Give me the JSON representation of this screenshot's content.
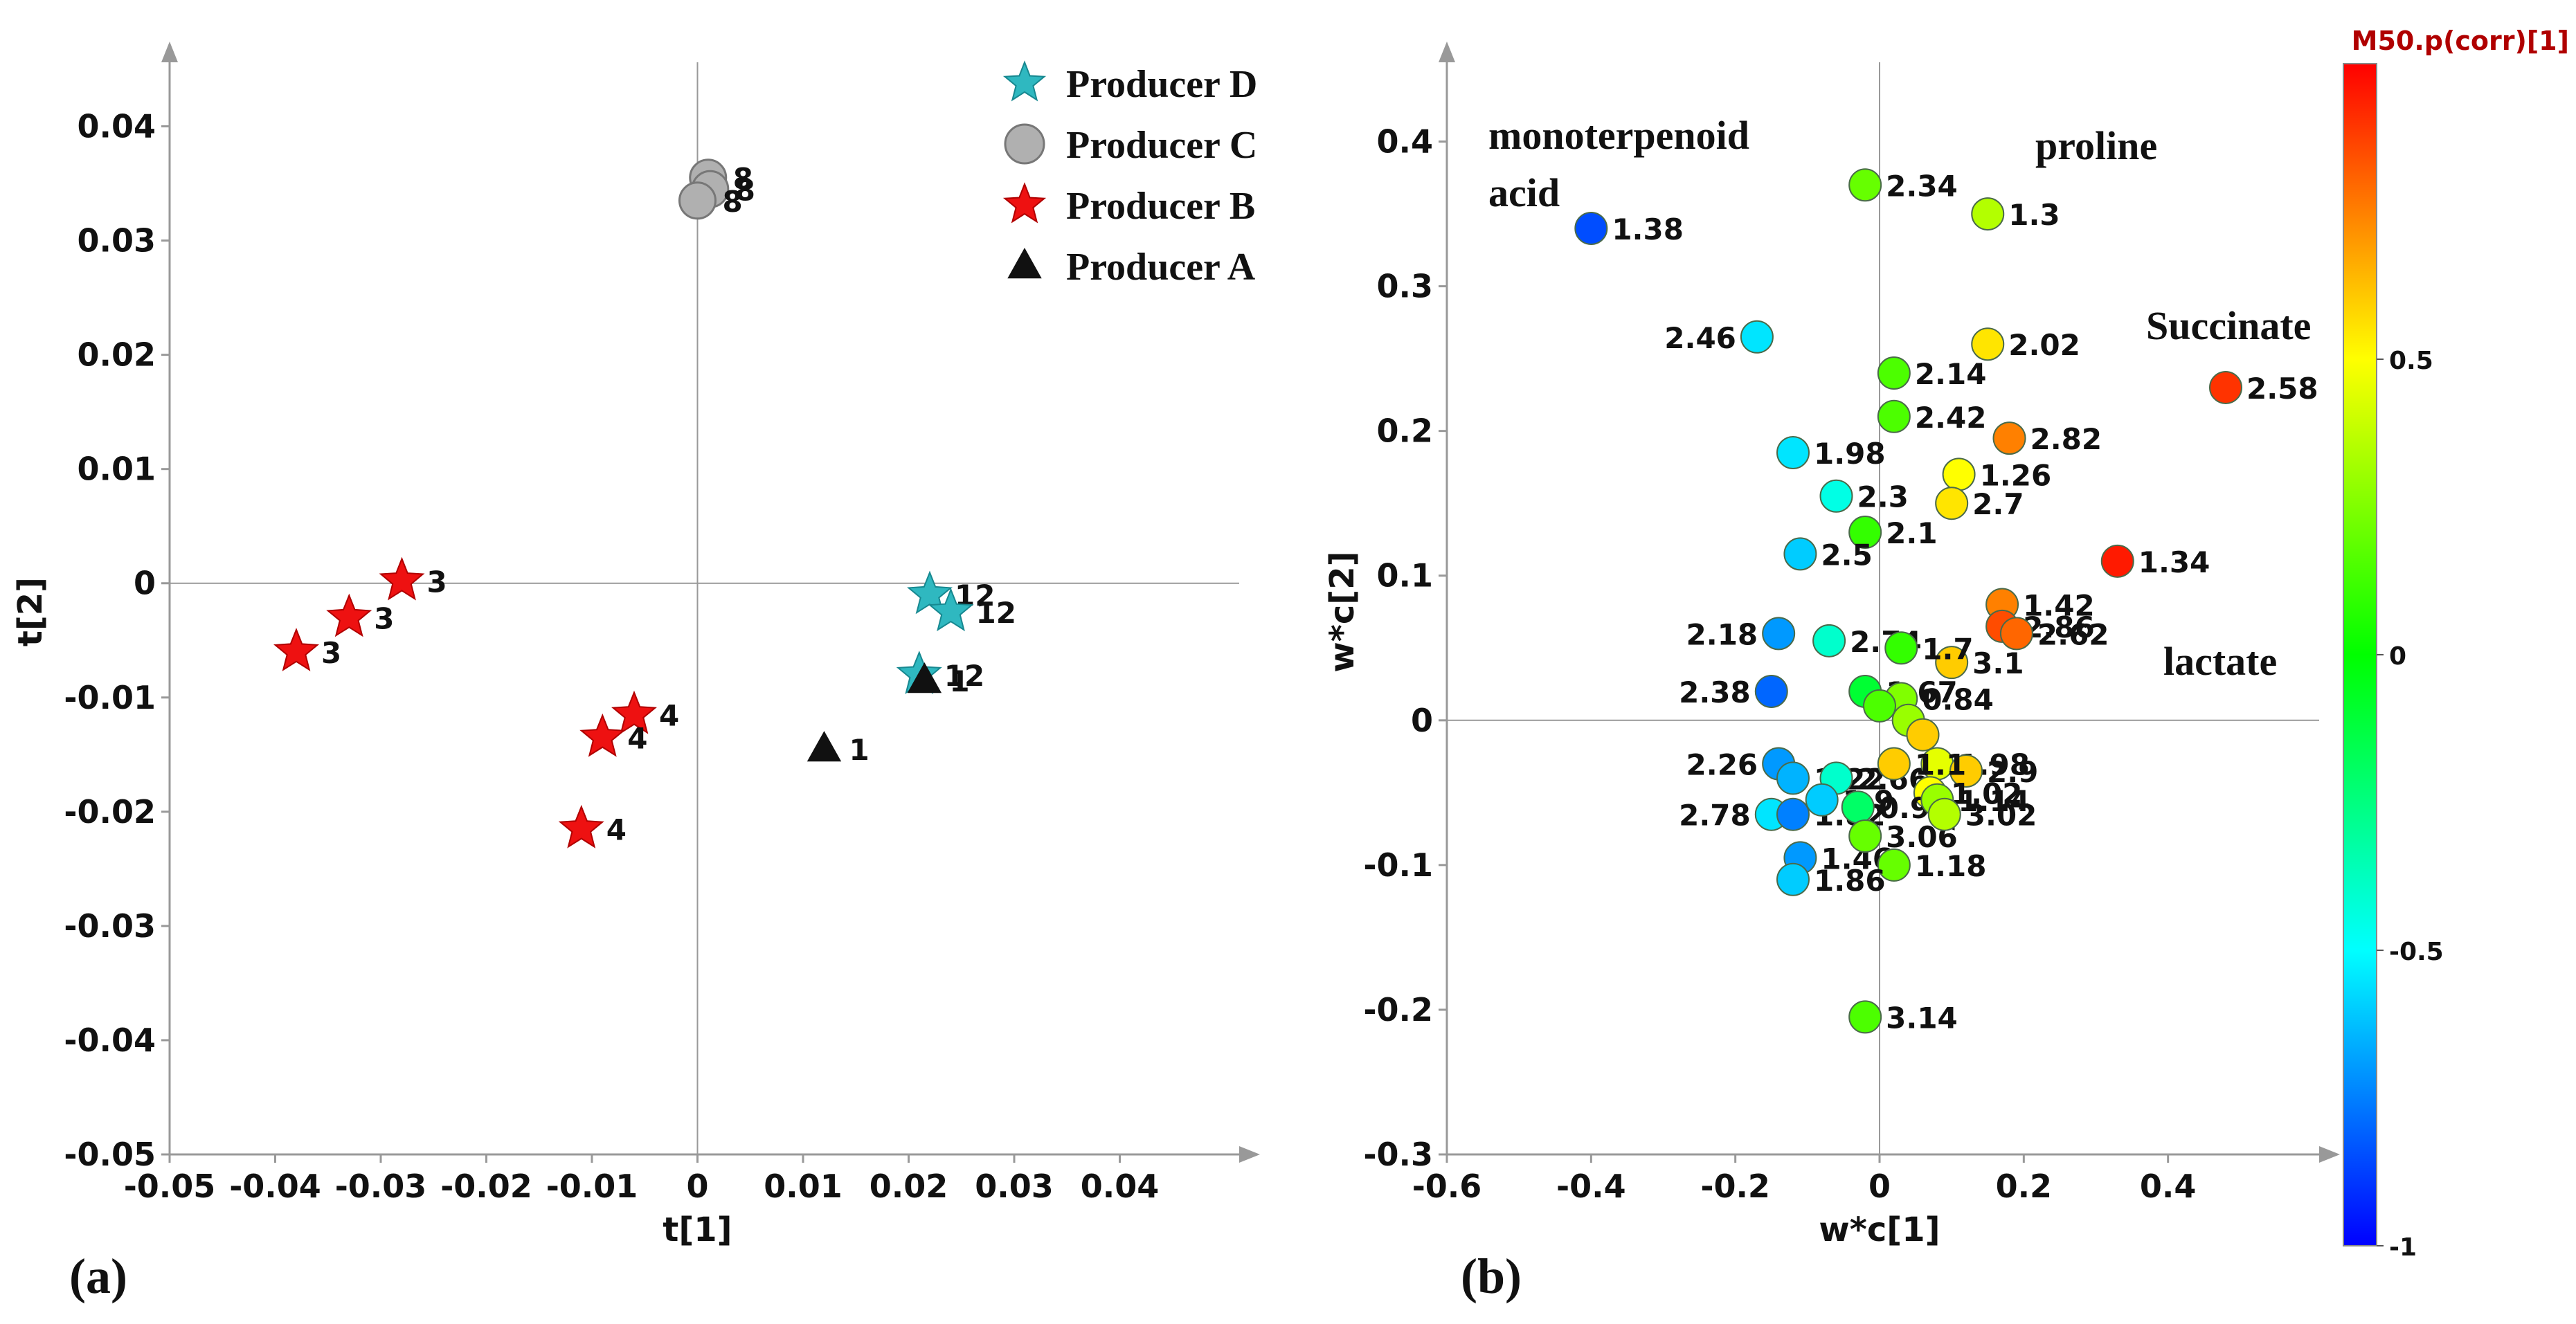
{
  "chart_data": [
    {
      "type": "scatter",
      "panel_label": "(a)",
      "xlabel": "t[1]",
      "ylabel": "t[2]",
      "xlim": [
        -0.05,
        0.05
      ],
      "ylim": [
        -0.05,
        0.045
      ],
      "x_ticks": [
        "-0.05",
        "-0.04",
        "-0.03",
        "-0.02",
        "-0.01",
        "0",
        "0.01",
        "0.02",
        "0.03",
        "0.04"
      ],
      "y_ticks": [
        "-0.05",
        "-0.04",
        "-0.03",
        "-0.02",
        "-0.01",
        "0",
        "0.01",
        "0.02",
        "0.03",
        "0.04"
      ],
      "legend_position": "top-right",
      "series": [
        {
          "name": "Producer D",
          "marker": "star",
          "color": "#2fb8c0",
          "points": [
            {
              "x": 0.022,
              "y": -0.001,
              "label": "12"
            },
            {
              "x": 0.024,
              "y": -0.0025,
              "label": "12"
            },
            {
              "x": 0.021,
              "y": -0.008,
              "label": "12"
            }
          ]
        },
        {
          "name": "Producer C",
          "marker": "circle",
          "color": "#b0b0b0",
          "points": [
            {
              "x": 0.001,
              "y": 0.0355,
              "label": "8"
            },
            {
              "x": 0.0012,
              "y": 0.0345,
              "label": "8"
            },
            {
              "x": 0.0,
              "y": 0.0335,
              "label": "8"
            }
          ]
        },
        {
          "name": "Producer B",
          "marker": "star",
          "color": "#ee1111",
          "points": [
            {
              "x": -0.028,
              "y": 0.0002,
              "label": "3"
            },
            {
              "x": -0.033,
              "y": -0.003,
              "label": "3"
            },
            {
              "x": -0.038,
              "y": -0.006,
              "label": "3"
            },
            {
              "x": -0.006,
              "y": -0.0115,
              "label": "4"
            },
            {
              "x": -0.009,
              "y": -0.0135,
              "label": "4"
            },
            {
              "x": -0.011,
              "y": -0.0215,
              "label": "4"
            }
          ]
        },
        {
          "name": "Producer A",
          "marker": "triangle",
          "color": "#111111",
          "points": [
            {
              "x": 0.0215,
              "y": -0.0085,
              "label": "1"
            },
            {
              "x": 0.012,
              "y": -0.0145,
              "label": "1"
            }
          ]
        }
      ]
    },
    {
      "type": "scatter",
      "panel_label": "(b)",
      "xlabel": "w*c[1]",
      "ylabel": "w*c[2]",
      "xlim": [
        -0.6,
        0.6
      ],
      "ylim": [
        -0.3,
        0.45
      ],
      "x_ticks": [
        "-0.6",
        "-0.4",
        "-0.2",
        "0",
        "0.2",
        "0.4"
      ],
      "y_ticks": [
        "-0.3",
        "-0.2",
        "-0.1",
        "0",
        "0.1",
        "0.2",
        "0.3",
        "0.4"
      ],
      "colorbar": {
        "title": "M50.p(corr)[1]",
        "min": -1,
        "max": 1,
        "ticks": [
          "0.5",
          "0",
          "-0.5",
          "-1"
        ]
      },
      "annotations": [
        "monoterpenoid",
        "acid",
        "proline",
        "Succinate",
        "lactate"
      ],
      "points": [
        {
          "x": -0.4,
          "y": 0.34,
          "c": -0.85,
          "label": "1.38"
        },
        {
          "x": -0.02,
          "y": 0.37,
          "c": 0.2,
          "label": "2.34"
        },
        {
          "x": 0.15,
          "y": 0.35,
          "c": 0.35,
          "label": "1.3"
        },
        {
          "x": -0.17,
          "y": 0.265,
          "c": -0.55,
          "label": "2.46"
        },
        {
          "x": 0.15,
          "y": 0.26,
          "c": 0.55,
          "label": "2.02"
        },
        {
          "x": 0.02,
          "y": 0.24,
          "c": 0.15,
          "label": "2.14"
        },
        {
          "x": 0.48,
          "y": 0.23,
          "c": 0.9,
          "label": "2.58"
        },
        {
          "x": 0.02,
          "y": 0.21,
          "c": 0.15,
          "label": "2.42"
        },
        {
          "x": 0.18,
          "y": 0.195,
          "c": 0.75,
          "label": "2.82"
        },
        {
          "x": -0.12,
          "y": 0.185,
          "c": -0.55,
          "label": "1.98"
        },
        {
          "x": 0.11,
          "y": 0.17,
          "c": 0.5,
          "label": "1.26"
        },
        {
          "x": -0.06,
          "y": 0.155,
          "c": -0.45,
          "label": "2.3"
        },
        {
          "x": 0.1,
          "y": 0.15,
          "c": 0.55,
          "label": "2.7"
        },
        {
          "x": -0.02,
          "y": 0.13,
          "c": 0.1,
          "label": "2.1"
        },
        {
          "x": -0.11,
          "y": 0.115,
          "c": -0.6,
          "label": "2.5"
        },
        {
          "x": 0.33,
          "y": 0.11,
          "c": 0.95,
          "label": "1.34"
        },
        {
          "x": 0.17,
          "y": 0.08,
          "c": 0.75,
          "label": "1.42"
        },
        {
          "x": 0.17,
          "y": 0.065,
          "c": 0.85,
          "label": "2.86"
        },
        {
          "x": 0.19,
          "y": 0.06,
          "c": 0.8,
          "label": "2.62"
        },
        {
          "x": 0.1,
          "y": 0.04,
          "c": 0.6,
          "label": "3.1"
        },
        {
          "x": -0.14,
          "y": 0.06,
          "c": -0.7,
          "label": "2.18"
        },
        {
          "x": -0.07,
          "y": 0.055,
          "c": -0.4,
          "label": "2.74"
        },
        {
          "x": 0.03,
          "y": 0.05,
          "c": 0.1,
          "label": "1.7"
        },
        {
          "x": -0.15,
          "y": 0.02,
          "c": -0.8,
          "label": "2.38"
        },
        {
          "x": -0.02,
          "y": 0.02,
          "c": -0.1,
          "label": "1.67"
        },
        {
          "x": 0.03,
          "y": 0.015,
          "c": 0.25,
          "label": "0.84"
        },
        {
          "x": 0.0,
          "y": 0.01,
          "c": 0.15,
          "label": ""
        },
        {
          "x": 0.04,
          "y": 0.0,
          "c": 0.3,
          "label": ""
        },
        {
          "x": 0.06,
          "y": -0.01,
          "c": 0.6,
          "label": ""
        },
        {
          "x": -0.14,
          "y": -0.03,
          "c": -0.7,
          "label": "2.26"
        },
        {
          "x": -0.12,
          "y": -0.04,
          "c": -0.65,
          "label": "1.22"
        },
        {
          "x": -0.06,
          "y": -0.04,
          "c": -0.4,
          "label": "2.66"
        },
        {
          "x": 0.08,
          "y": -0.03,
          "c": 0.45,
          "label": "1.98"
        },
        {
          "x": 0.12,
          "y": -0.035,
          "c": 0.6,
          "label": "2.9"
        },
        {
          "x": 0.07,
          "y": -0.05,
          "c": 0.5,
          "label": "1.02"
        },
        {
          "x": -0.15,
          "y": -0.065,
          "c": -0.55,
          "label": "2.78"
        },
        {
          "x": -0.12,
          "y": -0.065,
          "c": -0.75,
          "label": "1.82"
        },
        {
          "x": -0.08,
          "y": -0.055,
          "c": -0.6,
          "label": "1.9"
        },
        {
          "x": -0.03,
          "y": -0.06,
          "c": -0.2,
          "label": "0.94"
        },
        {
          "x": 0.02,
          "y": -0.03,
          "c": 0.6,
          "label": "1.1"
        },
        {
          "x": 0.08,
          "y": -0.055,
          "c": 0.3,
          "label": "1.14"
        },
        {
          "x": -0.11,
          "y": -0.095,
          "c": -0.7,
          "label": "1.46"
        },
        {
          "x": -0.02,
          "y": -0.08,
          "c": 0.2,
          "label": "3.06"
        },
        {
          "x": 0.02,
          "y": -0.1,
          "c": 0.2,
          "label": "1.18"
        },
        {
          "x": -0.12,
          "y": -0.11,
          "c": -0.6,
          "label": "1.86"
        },
        {
          "x": 0.09,
          "y": -0.065,
          "c": 0.35,
          "label": "3.02"
        },
        {
          "x": -0.02,
          "y": -0.205,
          "c": 0.15,
          "label": "3.14"
        }
      ]
    }
  ]
}
